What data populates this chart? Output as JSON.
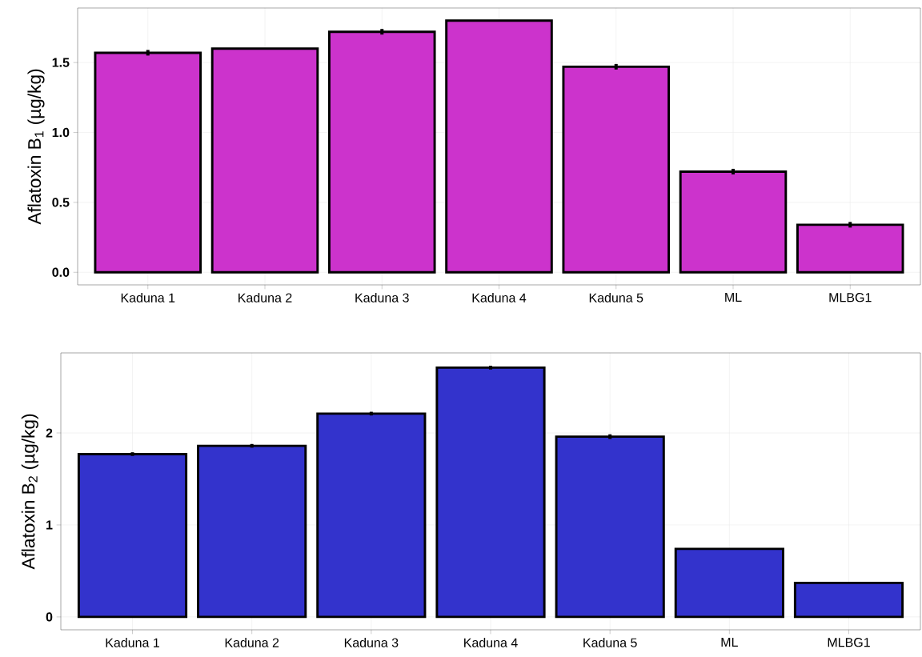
{
  "chart_data": [
    {
      "type": "bar",
      "ylabel": "Aflatoxin B$_{1}$ (µg/kg)",
      "categories": [
        "Kaduna 1",
        "Kaduna 2",
        "Kaduna 3",
        "Kaduna 4",
        "Kaduna 5",
        "ML",
        "MLBG1"
      ],
      "values": [
        1.57,
        1.6,
        1.72,
        1.8,
        1.47,
        0.72,
        0.34
      ],
      "errors": [
        0.02,
        null,
        0.02,
        null,
        0.02,
        0.02,
        0.02
      ],
      "color": "#cc33cc",
      "ylim": [
        -0.09,
        1.89
      ],
      "yticks": [
        {
          "value": 0,
          "label": "0.0"
        },
        0.5,
        {
          "value": 1,
          "label": "1.0"
        },
        1.5
      ],
      "grid": true
    },
    {
      "type": "bar",
      "ylabel": "Aflatoxin B$_{2}$ (µg/kg)",
      "categories": [
        "Kaduna 1",
        "Kaduna 2",
        "Kaduna 3",
        "Kaduna 4",
        "Kaduna 5",
        "ML",
        "MLBG1"
      ],
      "values": [
        1.77,
        1.86,
        2.21,
        2.71,
        1.96,
        0.74,
        0.37
      ],
      "errors": [
        0.02,
        0.02,
        0.02,
        0.02,
        0.025,
        null,
        null
      ],
      "color": "#3333cc",
      "ylim": [
        -0.14,
        2.87
      ],
      "yticks": [
        0,
        1,
        2
      ],
      "grid": true
    }
  ]
}
